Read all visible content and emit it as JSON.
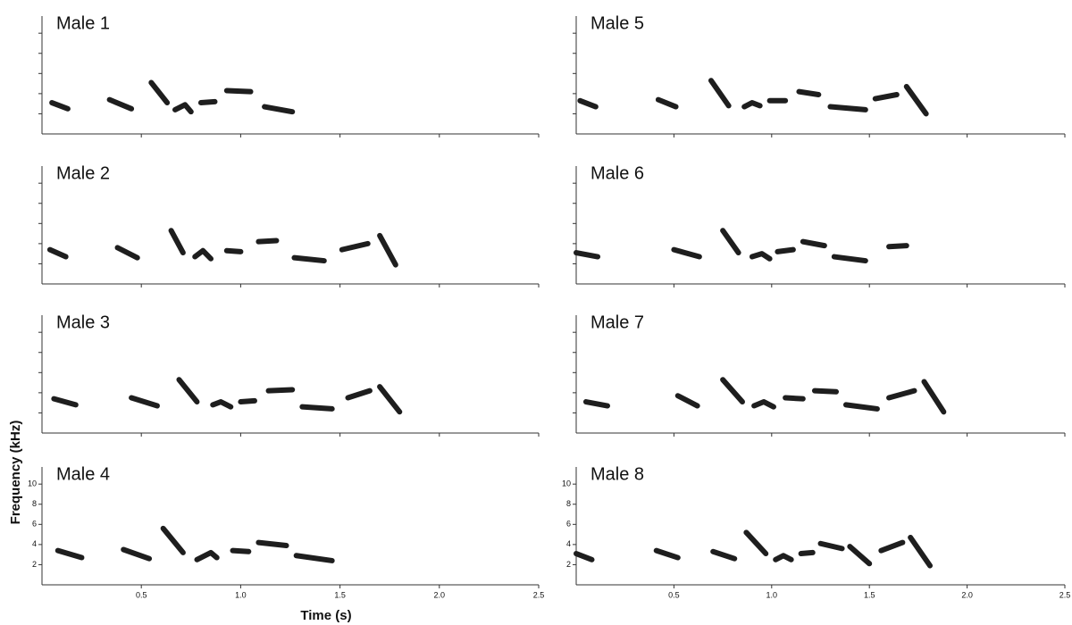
{
  "chart_data": [
    {
      "type": "spectrogram",
      "title": "Male 1",
      "color": "#1e1e1e",
      "xlim": [
        0,
        2.5
      ],
      "ylim": [
        0,
        11.7
      ],
      "tick_labels": false,
      "xticks": [
        0.5,
        {
          "value": 1,
          "label": "1.0"
        },
        1.5,
        {
          "value": 2,
          "label": "2.0"
        },
        2.5
      ],
      "yticks": [
        2,
        4,
        6,
        8,
        10
      ],
      "series": [
        {
          "x": [
            0.05,
            0.13
          ],
          "values": [
            3.1,
            2.5
          ]
        },
        {
          "x": [
            0.34,
            0.45
          ],
          "values": [
            3.4,
            2.5
          ]
        },
        {
          "x": [
            0.55,
            0.63
          ],
          "values": [
            5.1,
            3.1
          ]
        },
        {
          "x": [
            0.67,
            0.72,
            0.75
          ],
          "values": [
            2.4,
            2.9,
            2.2
          ]
        },
        {
          "x": [
            0.8,
            0.87
          ],
          "values": [
            3.1,
            3.2
          ]
        },
        {
          "x": [
            0.93,
            1.05
          ],
          "values": [
            4.3,
            4.2
          ]
        },
        {
          "x": [
            1.12,
            1.26
          ],
          "values": [
            2.7,
            2.2
          ]
        }
      ]
    },
    {
      "type": "spectrogram",
      "title": "Male 2",
      "color": "#1e1e1e",
      "xlim": [
        0,
        2.5
      ],
      "ylim": [
        0,
        11.7
      ],
      "tick_labels": false,
      "xticks": [
        0.5,
        {
          "value": 1,
          "label": "1.0"
        },
        1.5,
        {
          "value": 2,
          "label": "2.0"
        },
        2.5
      ],
      "yticks": [
        2,
        4,
        6,
        8,
        10
      ],
      "series": [
        {
          "x": [
            0.04,
            0.12
          ],
          "values": [
            3.4,
            2.7
          ]
        },
        {
          "x": [
            0.38,
            0.48
          ],
          "values": [
            3.6,
            2.6
          ]
        },
        {
          "x": [
            0.65,
            0.71
          ],
          "values": [
            5.3,
            3.1
          ]
        },
        {
          "x": [
            0.77,
            0.81,
            0.85
          ],
          "values": [
            2.7,
            3.3,
            2.5
          ]
        },
        {
          "x": [
            0.93,
            1.0
          ],
          "values": [
            3.3,
            3.2
          ]
        },
        {
          "x": [
            1.09,
            1.18
          ],
          "values": [
            4.2,
            4.3
          ]
        },
        {
          "x": [
            1.27,
            1.42
          ],
          "values": [
            2.6,
            2.3
          ]
        },
        {
          "x": [
            1.51,
            1.64
          ],
          "values": [
            3.4,
            4.0
          ]
        },
        {
          "x": [
            1.7,
            1.78
          ],
          "values": [
            4.8,
            1.9
          ]
        }
      ]
    },
    {
      "type": "spectrogram",
      "title": "Male 3",
      "color": "#1e1e1e",
      "xlim": [
        0,
        2.5
      ],
      "ylim": [
        0,
        11.7
      ],
      "tick_labels": false,
      "xticks": [
        0.5,
        {
          "value": 1,
          "label": "1.0"
        },
        1.5,
        {
          "value": 2,
          "label": "2.0"
        },
        2.5
      ],
      "yticks": [
        2,
        4,
        6,
        8,
        10
      ],
      "series": [
        {
          "x": [
            0.06,
            0.17
          ],
          "values": [
            3.4,
            2.8
          ]
        },
        {
          "x": [
            0.45,
            0.58
          ],
          "values": [
            3.5,
            2.7
          ]
        },
        {
          "x": [
            0.69,
            0.78
          ],
          "values": [
            5.3,
            3.1
          ]
        },
        {
          "x": [
            0.86,
            0.9,
            0.95
          ],
          "values": [
            2.8,
            3.1,
            2.6
          ]
        },
        {
          "x": [
            1.0,
            1.07
          ],
          "values": [
            3.1,
            3.2
          ]
        },
        {
          "x": [
            1.14,
            1.26
          ],
          "values": [
            4.2,
            4.3
          ]
        },
        {
          "x": [
            1.31,
            1.46
          ],
          "values": [
            2.6,
            2.4
          ]
        },
        {
          "x": [
            1.54,
            1.65
          ],
          "values": [
            3.5,
            4.2
          ]
        },
        {
          "x": [
            1.7,
            1.8
          ],
          "values": [
            4.6,
            2.1
          ]
        }
      ]
    },
    {
      "type": "spectrogram",
      "title": "Male 4",
      "color": "#1e1e1e",
      "xlim": [
        0,
        2.5
      ],
      "ylim": [
        0,
        11.7
      ],
      "tick_labels": true,
      "xlabel": "Time (s)",
      "ylabel": "Frequency (kHz)",
      "xticks": [
        0.5,
        {
          "value": 1,
          "label": "1.0"
        },
        1.5,
        {
          "value": 2,
          "label": "2.0"
        },
        2.5
      ],
      "yticks": [
        2,
        4,
        6,
        8,
        10
      ],
      "series": [
        {
          "x": [
            0.08,
            0.2
          ],
          "values": [
            3.4,
            2.7
          ]
        },
        {
          "x": [
            0.41,
            0.54
          ],
          "values": [
            3.5,
            2.6
          ]
        },
        {
          "x": [
            0.61,
            0.71
          ],
          "values": [
            5.6,
            3.2
          ]
        },
        {
          "x": [
            0.78,
            0.85,
            0.88
          ],
          "values": [
            2.5,
            3.2,
            2.7
          ]
        },
        {
          "x": [
            0.96,
            1.04
          ],
          "values": [
            3.4,
            3.3
          ]
        },
        {
          "x": [
            1.09,
            1.23
          ],
          "values": [
            4.2,
            3.9
          ]
        },
        {
          "x": [
            1.28,
            1.46
          ],
          "values": [
            2.9,
            2.4
          ]
        }
      ]
    },
    {
      "type": "spectrogram",
      "title": "Male 5",
      "color": "#1e1e1e",
      "xlim": [
        0,
        2.5
      ],
      "ylim": [
        0,
        11.7
      ],
      "tick_labels": false,
      "xticks": [
        0.5,
        {
          "value": 1,
          "label": "1.0"
        },
        1.5,
        {
          "value": 2,
          "label": "2.0"
        },
        2.5
      ],
      "yticks": [
        2,
        4,
        6,
        8,
        10
      ],
      "series": [
        {
          "x": [
            0.02,
            0.1
          ],
          "values": [
            3.3,
            2.7
          ]
        },
        {
          "x": [
            0.42,
            0.51
          ],
          "values": [
            3.4,
            2.7
          ]
        },
        {
          "x": [
            0.69,
            0.78
          ],
          "values": [
            5.3,
            2.8
          ]
        },
        {
          "x": [
            0.86,
            0.9,
            0.94
          ],
          "values": [
            2.7,
            3.1,
            2.8
          ]
        },
        {
          "x": [
            0.99,
            1.07
          ],
          "values": [
            3.3,
            3.3
          ]
        },
        {
          "x": [
            1.14,
            1.24
          ],
          "values": [
            4.2,
            3.9
          ]
        },
        {
          "x": [
            1.3,
            1.48
          ],
          "values": [
            2.7,
            2.4
          ]
        },
        {
          "x": [
            1.53,
            1.64
          ],
          "values": [
            3.5,
            3.9
          ]
        },
        {
          "x": [
            1.69,
            1.79
          ],
          "values": [
            4.7,
            2.0
          ]
        }
      ]
    },
    {
      "type": "spectrogram",
      "title": "Male 6",
      "color": "#1e1e1e",
      "xlim": [
        0,
        2.5
      ],
      "ylim": [
        0,
        11.7
      ],
      "tick_labels": false,
      "xticks": [
        0.5,
        {
          "value": 1,
          "label": "1.0"
        },
        1.5,
        {
          "value": 2,
          "label": "2.0"
        },
        2.5
      ],
      "yticks": [
        2,
        4,
        6,
        8,
        10
      ],
      "series": [
        {
          "x": [
            0.0,
            0.11
          ],
          "values": [
            3.1,
            2.7
          ]
        },
        {
          "x": [
            0.5,
            0.63
          ],
          "values": [
            3.4,
            2.7
          ]
        },
        {
          "x": [
            0.75,
            0.83
          ],
          "values": [
            5.3,
            3.1
          ]
        },
        {
          "x": [
            0.9,
            0.95,
            0.99
          ],
          "values": [
            2.7,
            3.0,
            2.5
          ]
        },
        {
          "x": [
            1.03,
            1.11
          ],
          "values": [
            3.2,
            3.4
          ]
        },
        {
          "x": [
            1.16,
            1.27
          ],
          "values": [
            4.2,
            3.8
          ]
        },
        {
          "x": [
            1.32,
            1.48
          ],
          "values": [
            2.7,
            2.3
          ]
        },
        {
          "x": [
            1.6,
            1.69
          ],
          "values": [
            3.7,
            3.8
          ]
        }
      ]
    },
    {
      "type": "spectrogram",
      "title": "Male 7",
      "color": "#1e1e1e",
      "xlim": [
        0,
        2.5
      ],
      "ylim": [
        0,
        11.7
      ],
      "tick_labels": false,
      "xticks": [
        0.5,
        {
          "value": 1,
          "label": "1.0"
        },
        1.5,
        {
          "value": 2,
          "label": "2.0"
        },
        2.5
      ],
      "yticks": [
        2,
        4,
        6,
        8,
        10
      ],
      "series": [
        {
          "x": [
            0.05,
            0.16
          ],
          "values": [
            3.1,
            2.7
          ]
        },
        {
          "x": [
            0.52,
            0.62
          ],
          "values": [
            3.7,
            2.7
          ]
        },
        {
          "x": [
            0.75,
            0.85
          ],
          "values": [
            5.3,
            3.1
          ]
        },
        {
          "x": [
            0.91,
            0.96,
            1.01
          ],
          "values": [
            2.7,
            3.1,
            2.6
          ]
        },
        {
          "x": [
            1.07,
            1.16
          ],
          "values": [
            3.5,
            3.4
          ]
        },
        {
          "x": [
            1.22,
            1.33
          ],
          "values": [
            4.2,
            4.1
          ]
        },
        {
          "x": [
            1.38,
            1.54
          ],
          "values": [
            2.8,
            2.4
          ]
        },
        {
          "x": [
            1.6,
            1.73
          ],
          "values": [
            3.5,
            4.2
          ]
        },
        {
          "x": [
            1.78,
            1.88
          ],
          "values": [
            5.1,
            2.1
          ]
        }
      ]
    },
    {
      "type": "spectrogram",
      "title": "Male 8",
      "color": "#1e1e1e",
      "xlim": [
        0,
        2.5
      ],
      "ylim": [
        0,
        11.7
      ],
      "tick_labels": true,
      "xticks": [
        0.5,
        {
          "value": 1,
          "label": "1.0"
        },
        1.5,
        {
          "value": 2,
          "label": "2.0"
        },
        2.5
      ],
      "yticks": [
        2,
        4,
        6,
        8,
        10
      ],
      "series": [
        {
          "x": [
            0.0,
            0.08
          ],
          "values": [
            3.1,
            2.5
          ]
        },
        {
          "x": [
            0.41,
            0.52
          ],
          "values": [
            3.4,
            2.7
          ]
        },
        {
          "x": [
            0.7,
            0.81
          ],
          "values": [
            3.3,
            2.6
          ]
        },
        {
          "x": [
            0.87,
            0.97
          ],
          "values": [
            5.2,
            3.1
          ]
        },
        {
          "x": [
            1.02,
            1.06,
            1.1
          ],
          "values": [
            2.5,
            2.9,
            2.5
          ]
        },
        {
          "x": [
            1.15,
            1.21
          ],
          "values": [
            3.1,
            3.2
          ]
        },
        {
          "x": [
            1.25,
            1.36
          ],
          "values": [
            4.1,
            3.6
          ]
        },
        {
          "x": [
            1.4,
            1.5
          ],
          "values": [
            3.8,
            2.1
          ]
        },
        {
          "x": [
            1.56,
            1.67
          ],
          "values": [
            3.4,
            4.2
          ]
        },
        {
          "x": [
            1.71,
            1.81
          ],
          "values": [
            4.7,
            1.9
          ]
        }
      ]
    }
  ]
}
